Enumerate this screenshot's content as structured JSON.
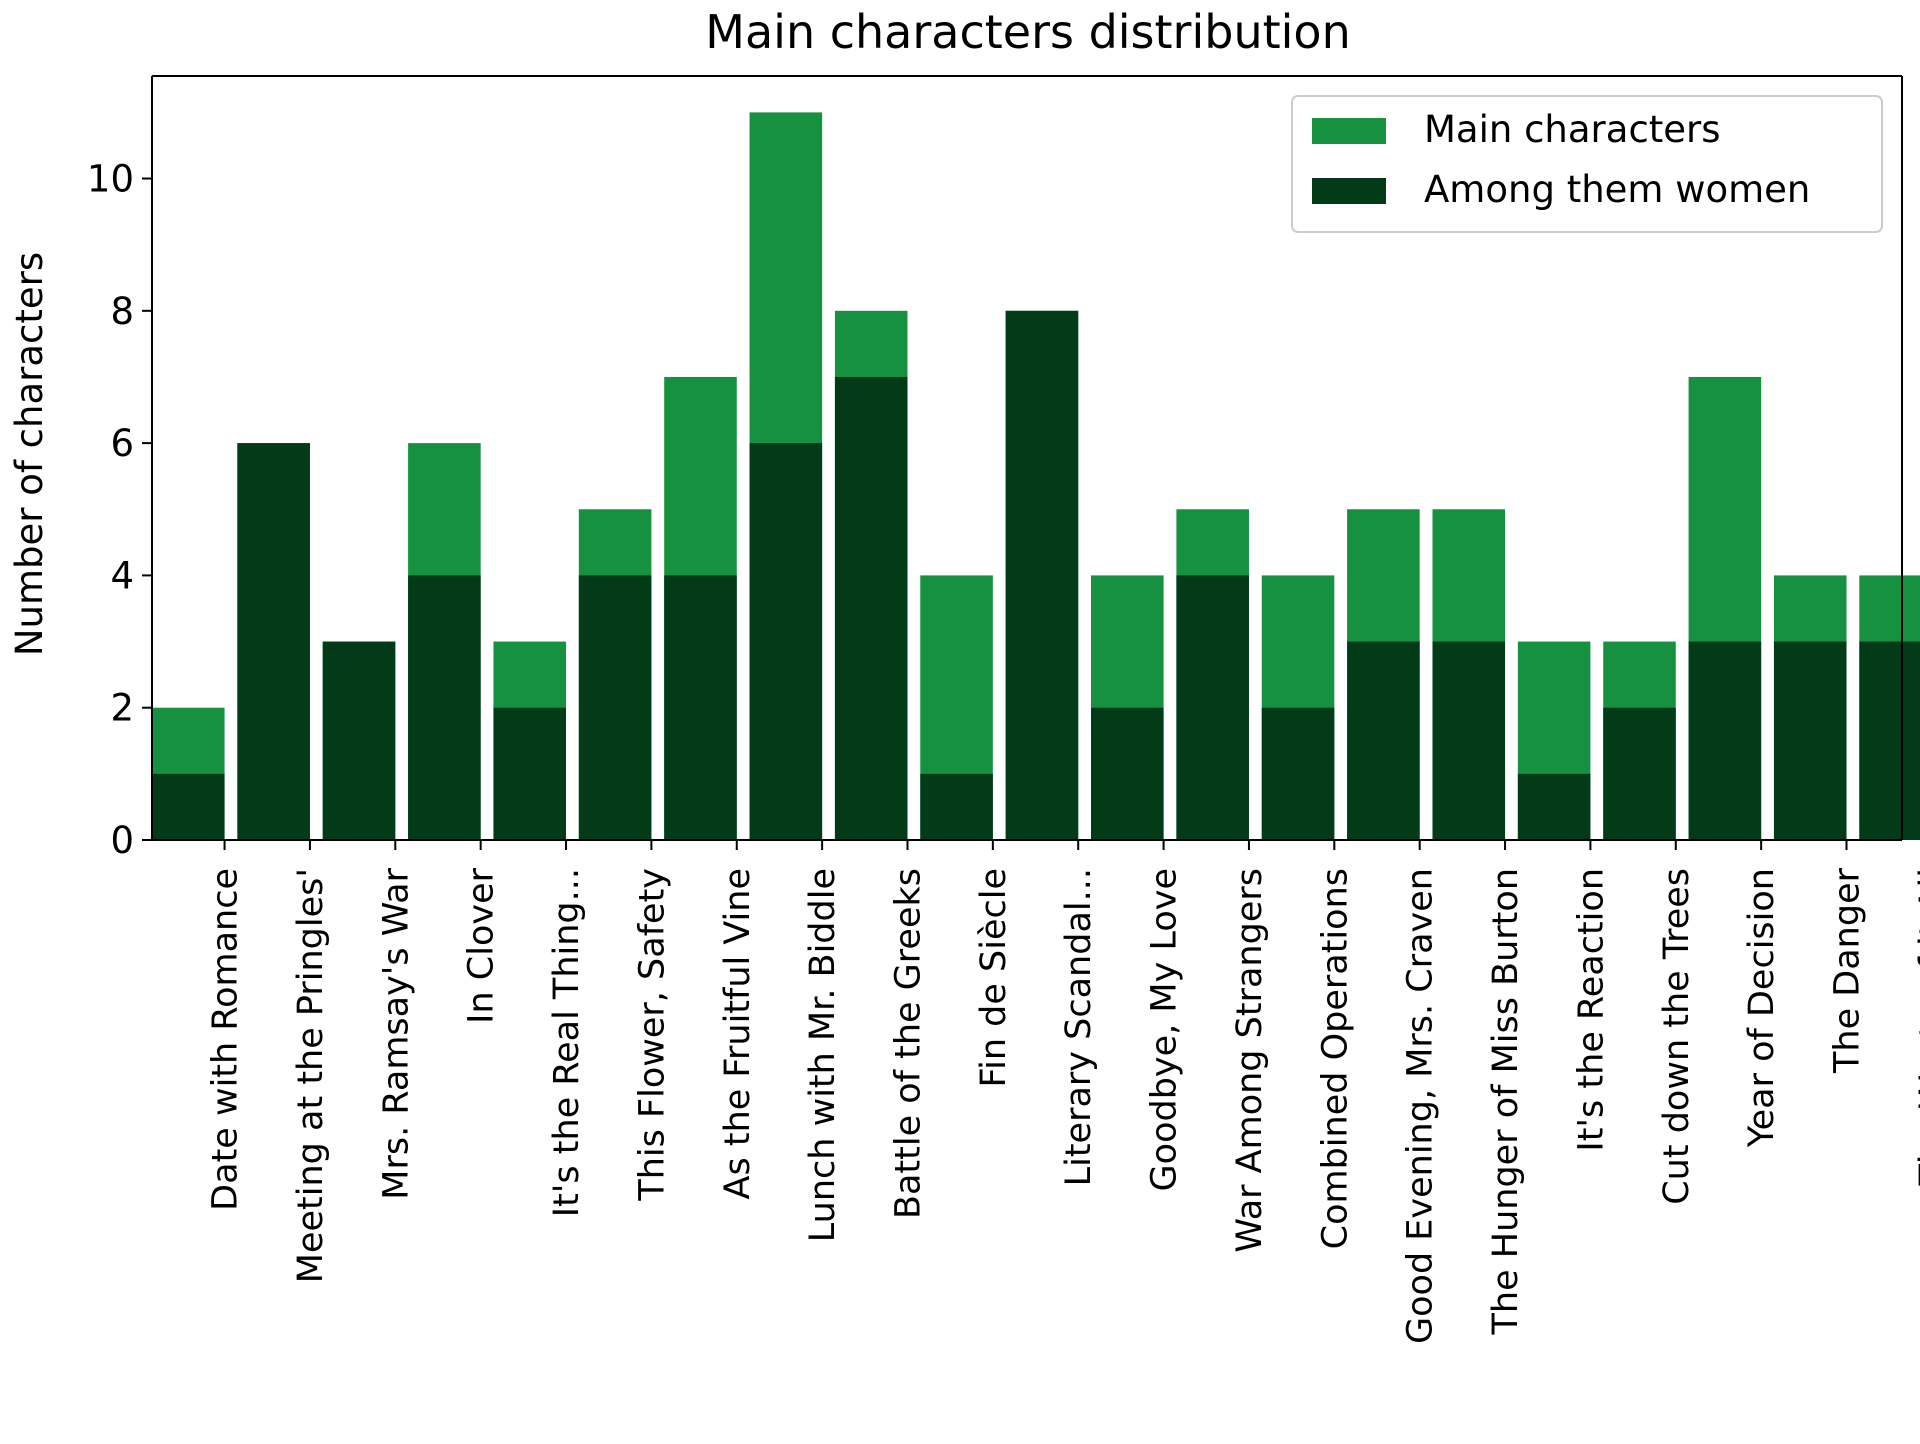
{
  "chart_data": {
    "type": "bar",
    "title": "Main characters distribution",
    "xlabel": "",
    "ylabel": "Number of characters",
    "ylim": [
      0,
      11.55
    ],
    "yticks": [
      0,
      2,
      4,
      6,
      8,
      10
    ],
    "grid": false,
    "legend_position": "top-right",
    "categories": [
      "Date with Romance",
      "Meeting at the Pringles'",
      "Mrs. Ramsay's War",
      "In Clover",
      "It's the Real Thing...",
      "This Flower, Safety",
      "As the Fruitful Vine",
      "Lunch with Mr. Biddle",
      "Battle of the Greeks",
      "Fin de Siècle",
      "Literary Scandal...",
      "Goodbye, My Love",
      "War Among Strangers",
      "Combined Operations",
      "Good Evening, Mrs. Craven",
      "The Hunger of Miss Burton",
      "It's the Reaction",
      "Cut down the Trees",
      "Year of Decision",
      "The Danger",
      "The Waste of it All"
    ],
    "series": [
      {
        "name": "Main characters",
        "color": "#15913f",
        "values": [
          2,
          6,
          3,
          6,
          3,
          5,
          7,
          11,
          8,
          4,
          8,
          4,
          5,
          4,
          5,
          5,
          3,
          3,
          7,
          4,
          4
        ]
      },
      {
        "name": "Among them women",
        "color": "#033a17",
        "values": [
          1,
          6,
          3,
          4,
          2,
          4,
          4,
          6,
          7,
          1,
          8,
          2,
          4,
          2,
          3,
          3,
          1,
          2,
          3,
          3,
          3
        ]
      }
    ]
  }
}
